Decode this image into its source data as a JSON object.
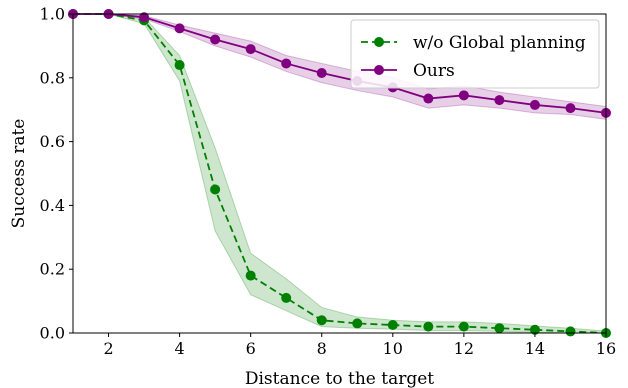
{
  "chart_data": {
    "type": "line",
    "xlabel": "Distance to the target",
    "ylabel": "Success rate",
    "xlim": [
      1,
      16
    ],
    "ylim": [
      0.0,
      1.0
    ],
    "xticks": [
      2,
      4,
      6,
      8,
      10,
      12,
      14,
      16
    ],
    "xtick_labels": [
      "2",
      "4",
      "6",
      "8",
      "10",
      "12",
      "14",
      "16"
    ],
    "yticks": [
      0.0,
      0.2,
      0.4,
      0.6,
      0.8,
      1.0
    ],
    "ytick_labels": [
      "0.0",
      "0.2",
      "0.4",
      "0.6",
      "0.8",
      "1.0"
    ],
    "grid": false,
    "legend_position": "top-right",
    "x": [
      1,
      2,
      3,
      4,
      5,
      6,
      7,
      8,
      9,
      10,
      11,
      12,
      13,
      14,
      15,
      16
    ],
    "series": [
      {
        "name": "w/o Global planning",
        "color": "#008000",
        "band_color": "#3a9a3a",
        "linestyle": "dashed",
        "values": [
          1.0,
          1.0,
          0.98,
          0.84,
          0.45,
          0.18,
          0.11,
          0.04,
          0.03,
          0.025,
          0.02,
          0.02,
          0.015,
          0.01,
          0.005,
          0.0
        ],
        "lower": [
          1.0,
          1.0,
          0.97,
          0.79,
          0.32,
          0.12,
          0.07,
          0.02,
          0.015,
          0.012,
          0.008,
          0.008,
          0.005,
          0.002,
          0.0,
          0.0
        ],
        "upper": [
          1.0,
          1.0,
          0.99,
          0.87,
          0.58,
          0.25,
          0.17,
          0.08,
          0.05,
          0.04,
          0.035,
          0.035,
          0.03,
          0.022,
          0.015,
          0.006
        ]
      },
      {
        "name": "Ours",
        "color": "#800080",
        "band_color": "#a040a0",
        "linestyle": "solid",
        "values": [
          1.0,
          1.0,
          0.99,
          0.955,
          0.92,
          0.89,
          0.845,
          0.815,
          0.79,
          0.77,
          0.735,
          0.745,
          0.73,
          0.715,
          0.705,
          0.69
        ],
        "lower": [
          1.0,
          1.0,
          0.985,
          0.945,
          0.9,
          0.865,
          0.82,
          0.785,
          0.76,
          0.74,
          0.705,
          0.715,
          0.705,
          0.69,
          0.685,
          0.67
        ],
        "upper": [
          1.0,
          1.0,
          0.995,
          0.965,
          0.94,
          0.915,
          0.87,
          0.845,
          0.82,
          0.8,
          0.765,
          0.775,
          0.755,
          0.74,
          0.725,
          0.71
        ]
      }
    ]
  }
}
